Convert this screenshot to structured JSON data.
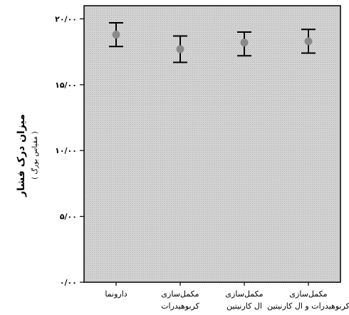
{
  "chart_data": {
    "type": "errorbar",
    "ylabel": "میزان درک فشار",
    "ylabel_sub": "( مقیاس بورگ )",
    "ylim": [
      0,
      21
    ],
    "yticks": [
      {
        "value": 0,
        "label": "۰/۰۰"
      },
      {
        "value": 5,
        "label": "۵/۰۰"
      },
      {
        "value": 10,
        "label": "۱۰/۰۰"
      },
      {
        "value": 15,
        "label": "۱۵/۰۰"
      },
      {
        "value": 20,
        "label": "۲۰/۰۰"
      }
    ],
    "categories": [
      {
        "lines": [
          "دارونما"
        ]
      },
      {
        "lines": [
          "مکمل‌سازی",
          "کربوهیدرات"
        ]
      },
      {
        "lines": [
          "مکمل‌سازی",
          "ال کارنیتین"
        ]
      },
      {
        "lines": [
          "مکمل‌سازی",
          "کربوهیدرات و ال کارنیتین"
        ]
      }
    ],
    "means": [
      18.8,
      17.7,
      18.2,
      18.3
    ],
    "upper": [
      19.7,
      18.7,
      19.0,
      19.2
    ],
    "lower": [
      17.9,
      16.7,
      17.2,
      17.4
    ],
    "grid": false,
    "background": "hatched-gray"
  }
}
